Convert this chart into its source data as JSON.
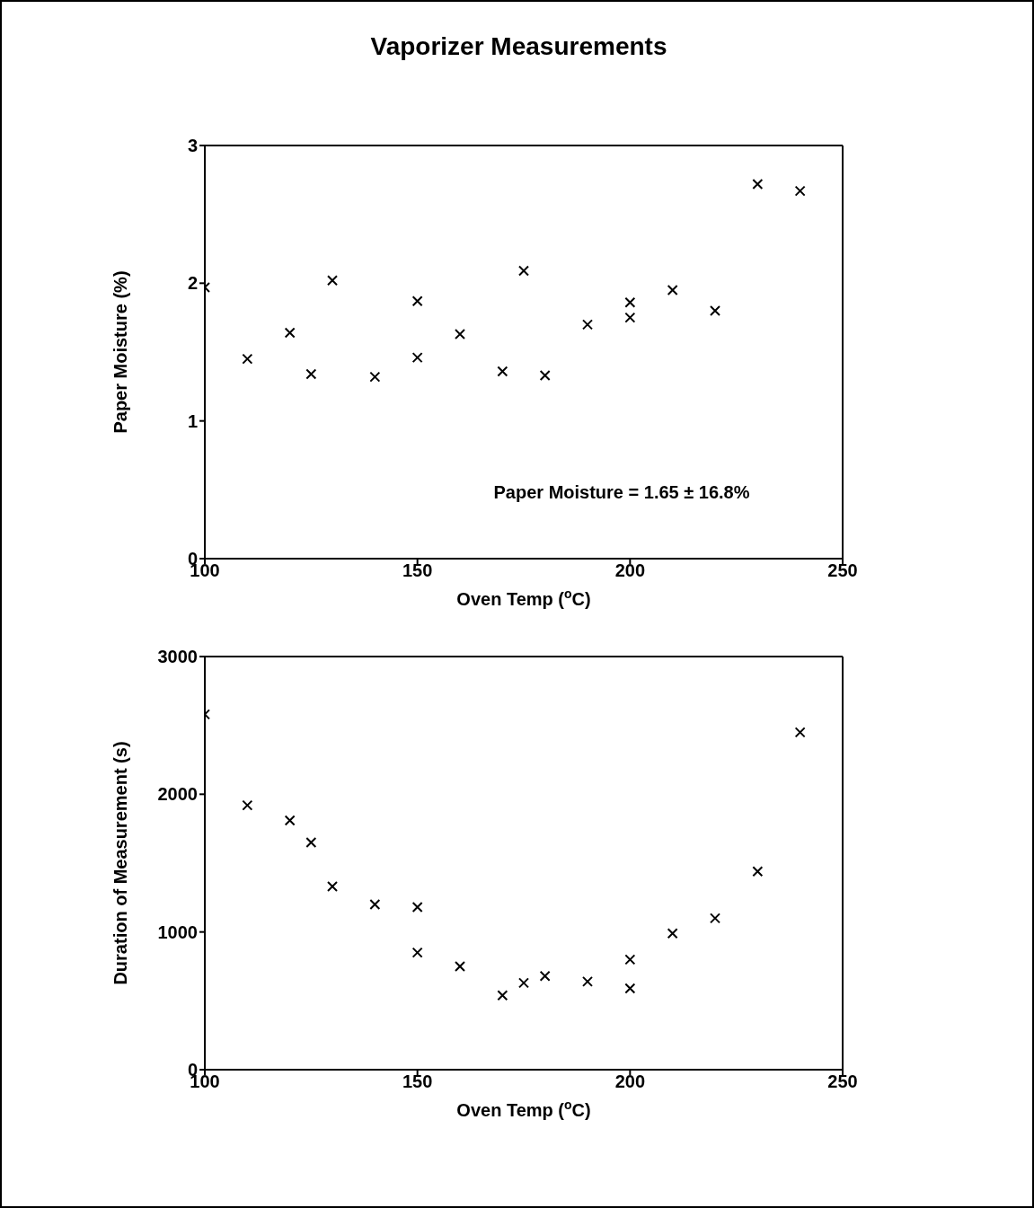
{
  "chart_data": [
    {
      "type": "scatter",
      "title": "Vaporizer Measurements",
      "xlabel": "Oven Temp ($^{o}$C)",
      "ylabel": "Paper Moisture (%)",
      "marker": "cross",
      "grid": false,
      "xlim": [
        100,
        250
      ],
      "xticks": [
        100,
        150,
        200,
        250
      ],
      "ylim": [
        0,
        3
      ],
      "yticks": [
        0,
        1,
        2,
        3
      ],
      "annotations": [
        "Paper Moisture = 1.65 ± 16.8%"
      ],
      "series": [
        {
          "color": "#000000",
          "x": [
            100,
            110,
            120,
            125,
            130,
            140,
            150,
            150,
            160,
            170,
            175,
            180,
            190,
            200,
            200,
            210,
            220,
            230,
            240
          ],
          "values": [
            1.97,
            1.45,
            1.64,
            1.34,
            2.02,
            1.32,
            1.87,
            1.46,
            1.63,
            1.36,
            2.09,
            1.33,
            1.7,
            1.86,
            1.75,
            1.95,
            1.8,
            2.72,
            2.67
          ]
        }
      ]
    },
    {
      "type": "scatter",
      "xlabel": "Oven Temp ($^{o}$C)",
      "ylabel": "Duration of Measurement (s)",
      "marker": "cross",
      "grid": false,
      "xlim": [
        100,
        250
      ],
      "xticks": [
        100,
        150,
        200,
        250
      ],
      "ylim": [
        0,
        3000
      ],
      "yticks": [
        0,
        1000,
        2000,
        3000
      ],
      "series": [
        {
          "color": "#000000",
          "x": [
            100,
            110,
            120,
            125,
            130,
            140,
            150,
            150,
            160,
            170,
            175,
            180,
            190,
            200,
            200,
            210,
            220,
            230,
            240
          ],
          "values": [
            2580,
            1920,
            1810,
            1650,
            1330,
            1200,
            1180,
            850,
            750,
            540,
            630,
            680,
            640,
            800,
            590,
            990,
            1100,
            1440,
            2450
          ]
        }
      ]
    }
  ]
}
